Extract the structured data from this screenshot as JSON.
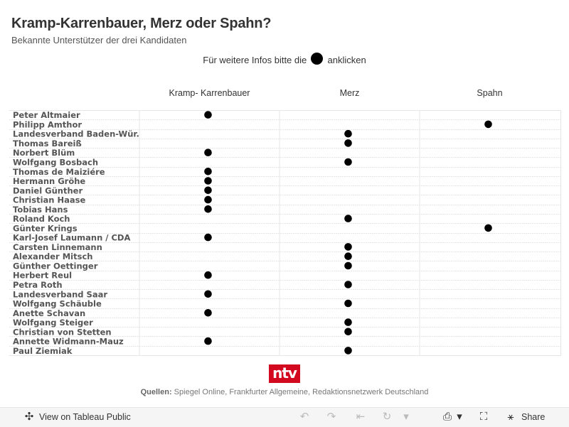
{
  "header": {
    "title": "Kramp-Karrenbauer, Merz oder Spahn?",
    "subtitle": "Bekannte Unterstützer der drei Kandidaten",
    "hint_before": "Für weitere Infos bitte die",
    "hint_after": "anklicken"
  },
  "chart_data": {
    "type": "table",
    "columns": [
      "Kramp- Karrenbauer",
      "Merz",
      "Spahn"
    ],
    "rows": [
      {
        "name": "Peter Altmaier",
        "supports": "Kramp- Karrenbauer"
      },
      {
        "name": "Philipp Amthor",
        "supports": "Spahn"
      },
      {
        "name": "Landesverband Baden-Wür.",
        "supports": "Merz"
      },
      {
        "name": "Thomas Bareiß",
        "supports": "Merz"
      },
      {
        "name": "Norbert Blüm",
        "supports": "Kramp- Karrenbauer"
      },
      {
        "name": "Wolfgang Bosbach",
        "supports": "Merz"
      },
      {
        "name": "Thomas de Maiziére",
        "supports": "Kramp- Karrenbauer"
      },
      {
        "name": "Hermann Gröhe",
        "supports": "Kramp- Karrenbauer"
      },
      {
        "name": "Daniel Günther",
        "supports": "Kramp- Karrenbauer"
      },
      {
        "name": "Christian Haase",
        "supports": "Kramp- Karrenbauer"
      },
      {
        "name": "Tobias Hans",
        "supports": "Kramp- Karrenbauer"
      },
      {
        "name": "Roland Koch",
        "supports": "Merz"
      },
      {
        "name": "Günter Krings",
        "supports": "Spahn"
      },
      {
        "name": "Karl-Josef Laumann / CDA",
        "supports": "Kramp- Karrenbauer"
      },
      {
        "name": "Carsten Linnemann",
        "supports": "Merz"
      },
      {
        "name": "Alexander Mitsch",
        "supports": "Merz"
      },
      {
        "name": "Günther Oettinger",
        "supports": "Merz"
      },
      {
        "name": "Herbert Reul",
        "supports": "Kramp- Karrenbauer"
      },
      {
        "name": "Petra Roth",
        "supports": "Merz"
      },
      {
        "name": "Landesverband Saar",
        "supports": "Kramp- Karrenbauer"
      },
      {
        "name": "Wolfgang Schäuble",
        "supports": "Merz"
      },
      {
        "name": "Anette Schavan",
        "supports": "Kramp- Karrenbauer"
      },
      {
        "name": "Wolfgang Steiger",
        "supports": "Merz"
      },
      {
        "name": "Christian von Stetten",
        "supports": "Merz"
      },
      {
        "name": "Annette Widmann-Mauz",
        "supports": "Kramp- Karrenbauer"
      },
      {
        "name": "Paul Ziemiak",
        "supports": "Merz"
      }
    ],
    "marker_color": "#000000",
    "grid": true
  },
  "branding": {
    "logo_text": "ntv",
    "logo_color": "#d2091f"
  },
  "footer": {
    "sources_label": "Quellen:",
    "sources_text": " Spiegel Online, Frankfurter Allgemeine, Redaktionsnetzwerk Deutschland"
  },
  "toolbar": {
    "view_label": "View on Tableau Public",
    "share_label": "Share",
    "icons": [
      "tableau-icon",
      "undo-icon",
      "redo-icon",
      "revert-icon",
      "refresh-icon",
      "download-icon",
      "fullscreen-icon",
      "share-icon"
    ]
  }
}
